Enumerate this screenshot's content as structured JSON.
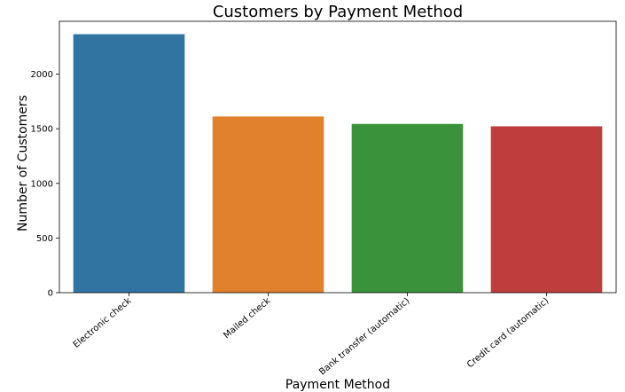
{
  "chart_data": {
    "type": "bar",
    "title": "Customers by Payment Method",
    "xlabel": "Payment Method",
    "ylabel": "Number of Customers",
    "categories": [
      "Electronic check",
      "Mailed check",
      "Bank transfer (automatic)",
      "Credit card (automatic)"
    ],
    "values": [
      2365,
      1612,
      1544,
      1522
    ],
    "colors": [
      "#3274a1",
      "#e1812c",
      "#3a923a",
      "#c03d3e"
    ],
    "ylim": [
      0,
      2483
    ],
    "yticks": [
      0,
      500,
      1000,
      1500,
      2000
    ],
    "ytick_labels": [
      "0",
      "500",
      "1000",
      "1500",
      "2000"
    ],
    "grid": false,
    "legend": "none"
  }
}
